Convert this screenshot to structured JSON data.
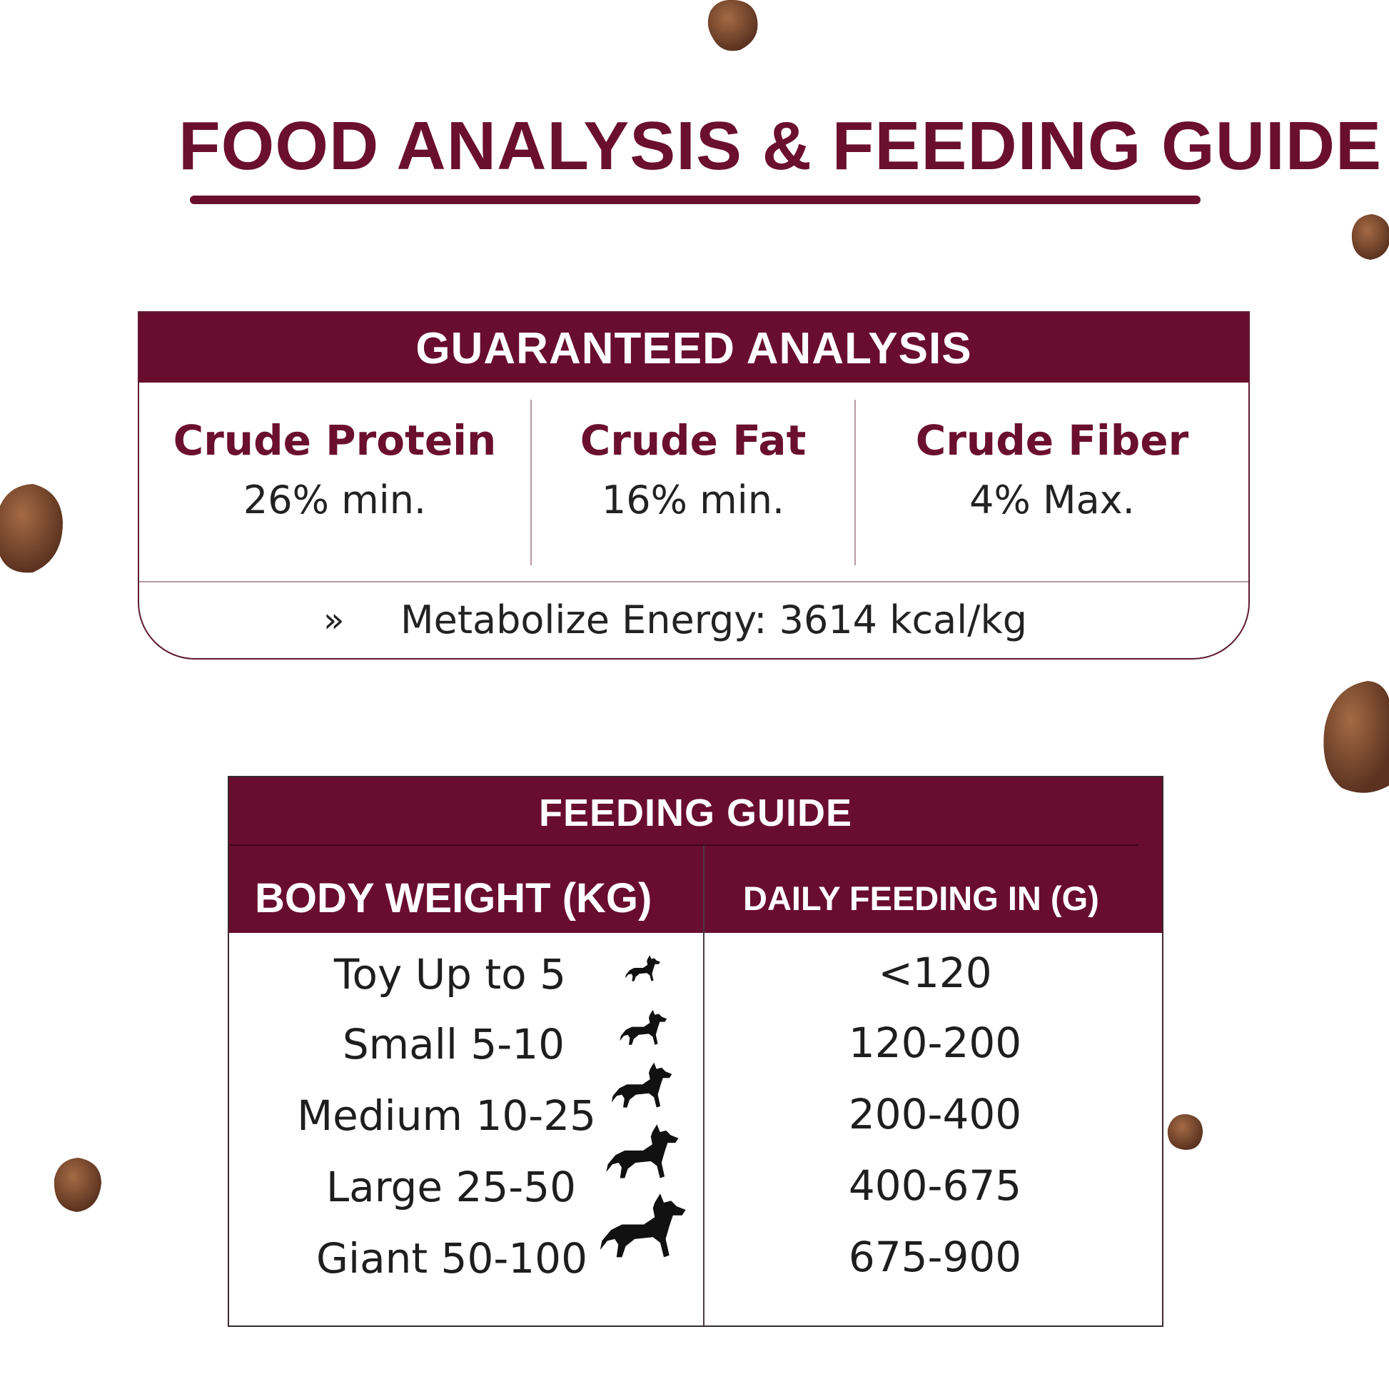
{
  "title": "FOOD ANALYSIS & FEEDING GUIDE",
  "colors": {
    "brand": "#6b0f2f",
    "header_bg": "#690d2f",
    "text": "#222222",
    "kibble": "#7a4a30"
  },
  "analysis": {
    "header": "GUARANTEED ANALYSIS",
    "nutrients": [
      {
        "name": "Crude Protein",
        "value": "26% min."
      },
      {
        "name": "Crude Fat",
        "value": "16% min."
      },
      {
        "name": "Crude Fiber",
        "value": "4% Max."
      }
    ],
    "energy_bullet": "»",
    "energy": "Metabolize Energy: 3614 kcal/kg"
  },
  "feeding": {
    "title": "FEEDING GUIDE",
    "col_weight": "BODY WEIGHT (KG)",
    "col_feed": "DAILY FEEDING IN (G)",
    "rows": [
      {
        "label": "Toy Up to 5",
        "value": "<120",
        "icon": "dog-toy-icon"
      },
      {
        "label": "Small 5-10",
        "value": "120-200",
        "icon": "dog-small-icon"
      },
      {
        "label": "Medium 10-25",
        "value": "200-400",
        "icon": "dog-medium-icon"
      },
      {
        "label": "Large 25-50",
        "value": "400-675",
        "icon": "dog-large-icon"
      },
      {
        "label": "Giant 50-100",
        "value": "675-900",
        "icon": "dog-giant-icon"
      }
    ]
  },
  "decor": {
    "kibble_icon": "kibble-pellet-icon"
  }
}
